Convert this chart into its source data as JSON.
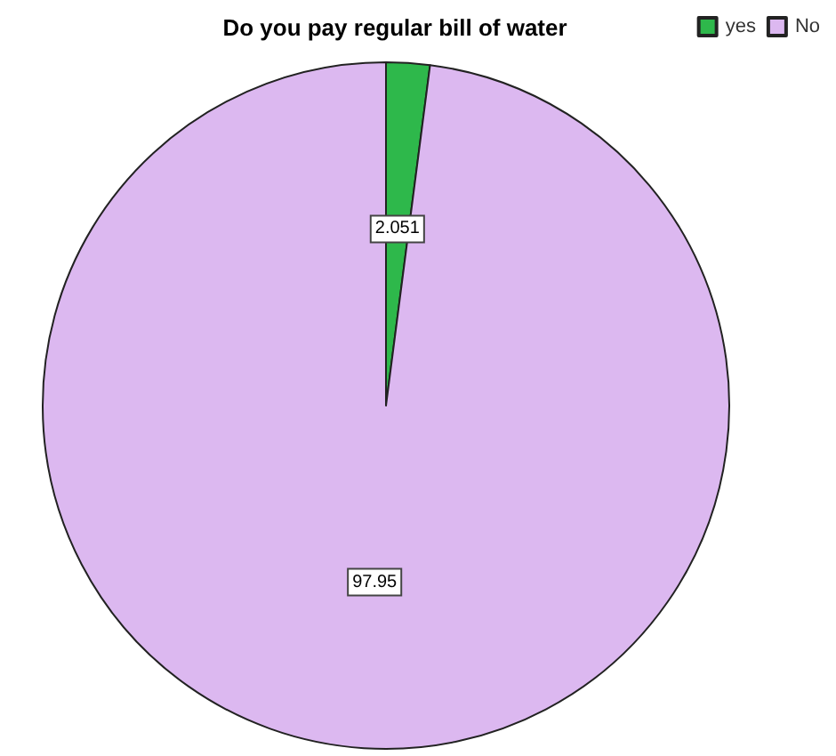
{
  "chart_data": {
    "type": "pie",
    "title": "Do you pay regular bill of water",
    "categories": [
      "yes",
      "No"
    ],
    "values": [
      2.051,
      97.95
    ],
    "colors": [
      "#2eb84b",
      "#dcb8f0"
    ],
    "data_labels": true,
    "legend": "top right"
  }
}
